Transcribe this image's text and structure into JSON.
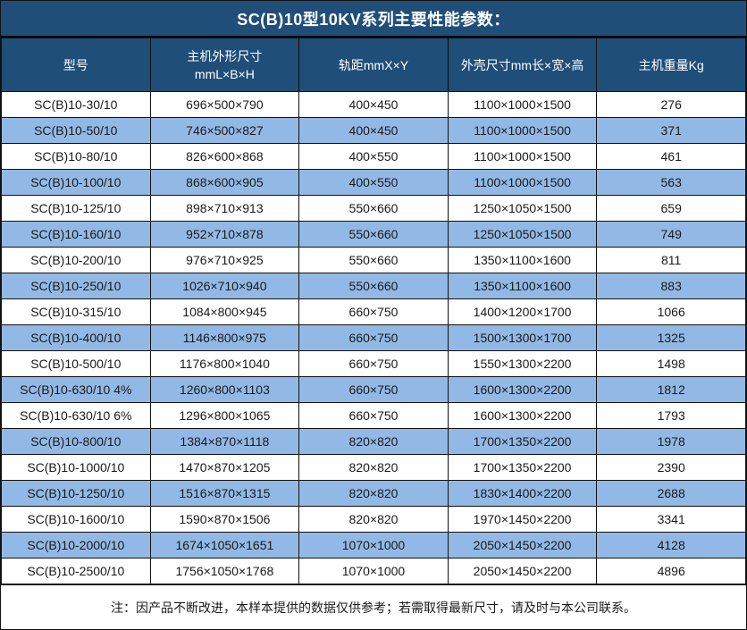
{
  "title": "SC(B)10型10KV系列主要性能参数：",
  "table": {
    "columns": [
      {
        "id": "model",
        "lines": [
          "型号"
        ]
      },
      {
        "id": "host_dimensions",
        "lines": [
          "主机外形尺寸",
          "mmL×B×H"
        ]
      },
      {
        "id": "rail_gauge",
        "lines": [
          "轨距mmX×Y"
        ]
      },
      {
        "id": "shell_dimensions",
        "lines": [
          "外壳尺寸mm长×宽×高"
        ]
      },
      {
        "id": "host_weight",
        "lines": [
          "主机重量Kg"
        ]
      }
    ],
    "rows": [
      [
        "SC(B)10-30/10",
        "696×500×790",
        "400×450",
        "1100×1000×1500",
        "276"
      ],
      [
        "SC(B)10-50/10",
        "746×500×827",
        "400×450",
        "1100×1000×1500",
        "371"
      ],
      [
        "SC(B)10-80/10",
        "826×600×868",
        "400×550",
        "1100×1000×1500",
        "461"
      ],
      [
        "SC(B)10-100/10",
        "868×600×905",
        "400×550",
        "1100×1000×1500",
        "563"
      ],
      [
        "SC(B)10-125/10",
        "898×710×913",
        "550×660",
        "1250×1050×1500",
        "659"
      ],
      [
        "SC(B)10-160/10",
        "952×710×878",
        "550×660",
        "1250×1050×1500",
        "749"
      ],
      [
        "SC(B)10-200/10",
        "976×710×925",
        "550×660",
        "1350×1100×1600",
        "811"
      ],
      [
        "SC(B)10-250/10",
        "1026×710×940",
        "550×660",
        "1350×1100×1600",
        "883"
      ],
      [
        "SC(B)10-315/10",
        "1084×800×945",
        "660×750",
        "1400×1200×1700",
        "1066"
      ],
      [
        "SC(B)10-400/10",
        "1146×800×975",
        "660×750",
        "1500×1300×1700",
        "1325"
      ],
      [
        "SC(B)10-500/10",
        "1176×800×1040",
        "660×750",
        "1550×1300×2200",
        "1498"
      ],
      [
        "SC(B)10-630/10 4%",
        "1260×800×1103",
        "660×750",
        "1600×1300×2200",
        "1812"
      ],
      [
        "SC(B)10-630/10 6%",
        "1296×800×1065",
        "660×750",
        "1600×1300×2200",
        "1793"
      ],
      [
        "SC(B)10-800/10",
        "1384×870×1118",
        "820×820",
        "1700×1350×2200",
        "1978"
      ],
      [
        "SC(B)10-1000/10",
        "1470×870×1205",
        "820×820",
        "1700×1350×2200",
        "2390"
      ],
      [
        "SC(B)10-1250/10",
        "1516×870×1315",
        "820×820",
        "1830×1400×2200",
        "2688"
      ],
      [
        "SC(B)10-1600/10",
        "1590×870×1506",
        "820×820",
        "1970×1450×2200",
        "3341"
      ],
      [
        "SC(B)10-2000/10",
        "1674×1050×1651",
        "1070×1000",
        "2050×1450×2200",
        "4128"
      ],
      [
        "SC(B)10-2500/10",
        "1756×1050×1768",
        "1070×1000",
        "2050×1450×2200",
        "4896"
      ]
    ]
  },
  "footer_note": "注：因产品不断改进，本样本提供的数据仅供参考；若需取得最新尺寸，请及时与本公司联系。",
  "colors": {
    "header_bg": "#1f4e79",
    "row_bg": "#ffffff",
    "alt_row_bg": "#92b9e5",
    "border": "#111111",
    "header_text": "#ffffff",
    "body_text": "#1a1a1a"
  }
}
